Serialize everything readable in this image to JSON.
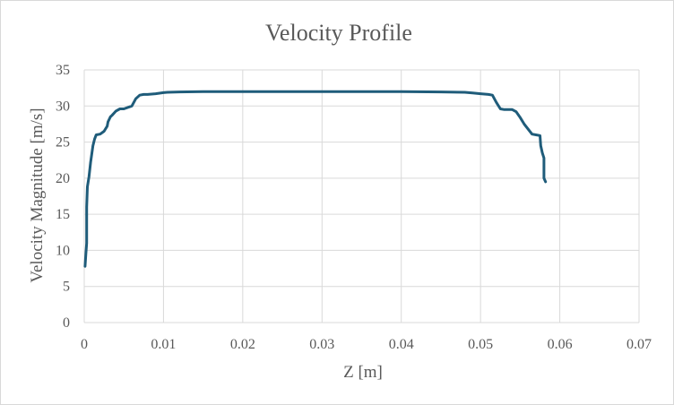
{
  "chart_data": {
    "type": "line",
    "title": "Velocity Profile",
    "xlabel": "Z [m]",
    "ylabel": "Velocity Magnitude [m/s]",
    "xlim": [
      0,
      0.07
    ],
    "ylim": [
      0,
      35
    ],
    "x_ticks": [
      0,
      0.01,
      0.02,
      0.03,
      0.04,
      0.05,
      0.06,
      0.07
    ],
    "x_tick_labels": [
      "0",
      "0.01",
      "0.02",
      "0.03",
      "0.04",
      "0.05",
      "0.06",
      "0.07"
    ],
    "y_ticks": [
      0,
      5,
      10,
      15,
      20,
      25,
      30,
      35
    ],
    "y_tick_labels": [
      "0",
      "5",
      "10",
      "15",
      "20",
      "25",
      "30",
      "35"
    ],
    "grid": true,
    "legend": "none",
    "series": [
      {
        "color": "#1f5c7a",
        "x": [
          0.0001,
          0.0002,
          0.0003,
          0.0003,
          0.0004,
          0.0005,
          0.0006,
          0.0008,
          0.0009,
          0.0011,
          0.0013,
          0.0015,
          0.002,
          0.0025,
          0.0029,
          0.003,
          0.0033,
          0.0035,
          0.004,
          0.0045,
          0.005,
          0.006,
          0.0065,
          0.007,
          0.0075,
          0.008,
          0.009,
          0.01,
          0.0105,
          0.012,
          0.015,
          0.02,
          0.025,
          0.03,
          0.035,
          0.04,
          0.045,
          0.048,
          0.049,
          0.05,
          0.051,
          0.0515,
          0.052,
          0.0525,
          0.053,
          0.054,
          0.0545,
          0.055,
          0.0555,
          0.056,
          0.0565,
          0.057,
          0.0575,
          0.0576,
          0.0578,
          0.058,
          0.058,
          0.0582
        ],
        "y": [
          7.8,
          9.5,
          11,
          16,
          18.8,
          19.5,
          20.2,
          22.2,
          23,
          24.5,
          25.4,
          26,
          26.1,
          26.5,
          27.2,
          27.8,
          28.5,
          28.7,
          29.3,
          29.6,
          29.6,
          30,
          31,
          31.5,
          31.6,
          31.6,
          31.7,
          31.85,
          31.9,
          31.95,
          32,
          32,
          32,
          32,
          32,
          32,
          31.95,
          31.9,
          31.8,
          31.7,
          31.6,
          31.5,
          30.5,
          29.6,
          29.5,
          29.5,
          29.2,
          28.4,
          27.5,
          26.8,
          26.1,
          26,
          25.9,
          24.5,
          23.5,
          22.8,
          20,
          19.5
        ]
      }
    ]
  }
}
